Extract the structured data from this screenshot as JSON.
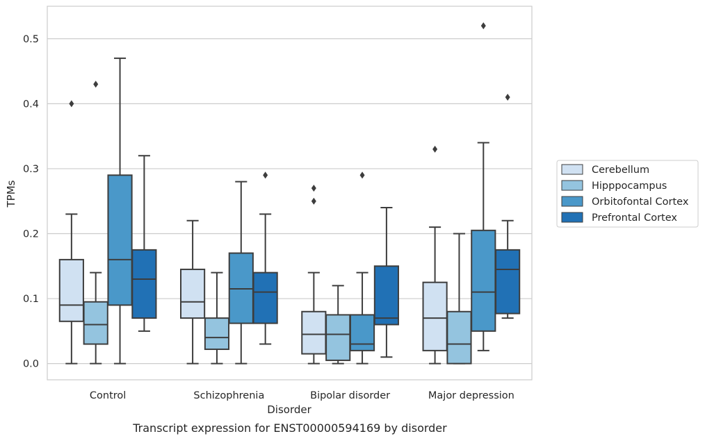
{
  "chart_data": {
    "type": "box",
    "xlabel": "Disorder",
    "ylabel": "TPMs",
    "caption": "Transcript expression for ENST00000594169 by disorder",
    "ylim": [
      -0.025,
      0.55
    ],
    "yticks": [
      0.0,
      0.1,
      0.2,
      0.3,
      0.4,
      0.5
    ],
    "ytick_labels": [
      "0.0",
      "0.1",
      "0.2",
      "0.3",
      "0.4",
      "0.5"
    ],
    "grid": true,
    "legend_position": "right",
    "categories": [
      "Control",
      "Schizophrenia",
      "Bipolar disorder",
      "Major depression"
    ],
    "series": [
      {
        "name": "Cerebellum",
        "color": "#d0e1f2",
        "boxes": [
          {
            "whislo": 0.0,
            "q1": 0.065,
            "med": 0.09,
            "q3": 0.16,
            "whishi": 0.23,
            "fliers": [
              0.4
            ]
          },
          {
            "whislo": 0.0,
            "q1": 0.07,
            "med": 0.095,
            "q3": 0.145,
            "whishi": 0.22,
            "fliers": []
          },
          {
            "whislo": 0.0,
            "q1": 0.015,
            "med": 0.045,
            "q3": 0.08,
            "whishi": 0.14,
            "fliers": [
              0.25,
              0.27
            ]
          },
          {
            "whislo": 0.0,
            "q1": 0.02,
            "med": 0.07,
            "q3": 0.125,
            "whishi": 0.21,
            "fliers": [
              0.33
            ]
          }
        ]
      },
      {
        "name": "Hipppocampus",
        "color": "#94c4df",
        "boxes": [
          {
            "whislo": 0.0,
            "q1": 0.03,
            "med": 0.06,
            "q3": 0.095,
            "whishi": 0.14,
            "fliers": [
              0.43
            ]
          },
          {
            "whislo": 0.0,
            "q1": 0.022,
            "med": 0.04,
            "q3": 0.07,
            "whishi": 0.14,
            "fliers": []
          },
          {
            "whislo": 0.0,
            "q1": 0.005,
            "med": 0.045,
            "q3": 0.075,
            "whishi": 0.12,
            "fliers": []
          },
          {
            "whislo": 0.0,
            "q1": 0.0,
            "med": 0.03,
            "q3": 0.08,
            "whishi": 0.2,
            "fliers": []
          }
        ]
      },
      {
        "name": "Orbitofontal Cortex",
        "color": "#4a98c9",
        "boxes": [
          {
            "whislo": 0.0,
            "q1": 0.09,
            "med": 0.16,
            "q3": 0.29,
            "whishi": 0.47,
            "fliers": []
          },
          {
            "whislo": 0.0,
            "q1": 0.062,
            "med": 0.115,
            "q3": 0.17,
            "whishi": 0.28,
            "fliers": []
          },
          {
            "whislo": 0.0,
            "q1": 0.02,
            "med": 0.03,
            "q3": 0.075,
            "whishi": 0.14,
            "fliers": [
              0.29
            ]
          },
          {
            "whislo": 0.02,
            "q1": 0.05,
            "med": 0.11,
            "q3": 0.205,
            "whishi": 0.34,
            "fliers": [
              0.52
            ]
          }
        ]
      },
      {
        "name": "Prefrontal Cortex",
        "color": "#2171b5",
        "boxes": [
          {
            "whislo": 0.05,
            "q1": 0.07,
            "med": 0.13,
            "q3": 0.175,
            "whishi": 0.32,
            "fliers": []
          },
          {
            "whislo": 0.03,
            "q1": 0.062,
            "med": 0.11,
            "q3": 0.14,
            "whishi": 0.23,
            "fliers": [
              0.29
            ]
          },
          {
            "whislo": 0.01,
            "q1": 0.06,
            "med": 0.07,
            "q3": 0.15,
            "whishi": 0.24,
            "fliers": []
          },
          {
            "whislo": 0.07,
            "q1": 0.077,
            "med": 0.145,
            "q3": 0.175,
            "whishi": 0.22,
            "fliers": [
              0.41
            ]
          }
        ]
      }
    ]
  }
}
